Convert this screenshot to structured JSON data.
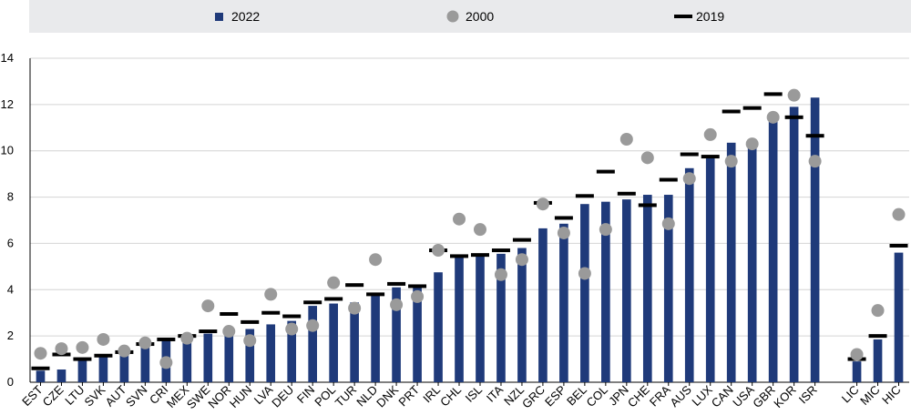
{
  "chart_data": {
    "type": "bar",
    "title": "",
    "xlabel": "",
    "ylabel": "",
    "ylim": [
      0,
      14
    ],
    "yticks": [
      0,
      2,
      4,
      6,
      8,
      10,
      12,
      14
    ],
    "grid": "horizontal",
    "legend_position": "top",
    "categories": [
      "EST",
      "CZE",
      "LTU",
      "SVK",
      "AUT",
      "SVN",
      "CRI",
      "MEX",
      "SWE",
      "NOR",
      "HUN",
      "LVA",
      "DEU",
      "FIN",
      "POL",
      "TUR",
      "NLD",
      "DNK",
      "PRT",
      "IRL",
      "CHL",
      "ISL",
      "ITA",
      "NZL",
      "GRC",
      "ESP",
      "BEL",
      "COL",
      "JPN",
      "CHE",
      "FRA",
      "AUS",
      "LUX",
      "CAN",
      "USA",
      "GBR",
      "KOR",
      "ISR",
      "",
      "LIC",
      "MIC",
      "HIC"
    ],
    "series": [
      {
        "name": "2022",
        "kind": "bar",
        "color": "#1f3a7a",
        "values": [
          0.5,
          0.55,
          1.0,
          1.1,
          1.25,
          1.5,
          1.85,
          2.0,
          2.1,
          2.15,
          2.3,
          2.5,
          2.65,
          3.3,
          3.4,
          3.45,
          3.75,
          4.1,
          4.15,
          4.75,
          5.45,
          5.5,
          5.55,
          5.8,
          6.65,
          6.85,
          7.7,
          7.8,
          7.9,
          8.1,
          8.1,
          9.25,
          9.7,
          10.35,
          10.15,
          11.25,
          11.9,
          12.3,
          null,
          0.9,
          1.85,
          5.6
        ]
      },
      {
        "name": "2000",
        "kind": "marker",
        "color": "#9a9a9a",
        "values": [
          1.25,
          1.45,
          1.5,
          1.85,
          1.35,
          1.7,
          0.85,
          1.9,
          3.3,
          2.2,
          1.8,
          3.8,
          2.3,
          2.45,
          4.3,
          3.2,
          5.3,
          3.35,
          3.7,
          5.7,
          7.05,
          6.6,
          4.65,
          5.3,
          7.7,
          6.45,
          4.7,
          6.6,
          10.5,
          9.7,
          6.85,
          8.8,
          10.7,
          9.55,
          10.3,
          11.45,
          12.4,
          9.55,
          null,
          1.2,
          3.1,
          7.25
        ]
      },
      {
        "name": "2019",
        "kind": "dash",
        "color": "#000000",
        "values": [
          0.6,
          1.2,
          1.0,
          1.15,
          1.3,
          1.65,
          1.85,
          2.0,
          2.2,
          2.95,
          2.6,
          3.0,
          2.85,
          3.45,
          3.6,
          4.2,
          3.8,
          4.25,
          4.15,
          5.7,
          5.45,
          5.5,
          5.7,
          6.15,
          7.75,
          7.1,
          8.05,
          9.1,
          8.15,
          7.65,
          8.75,
          9.85,
          9.75,
          11.7,
          11.85,
          12.45,
          11.45,
          10.65,
          null,
          1.0,
          2.0,
          5.9
        ]
      }
    ]
  }
}
